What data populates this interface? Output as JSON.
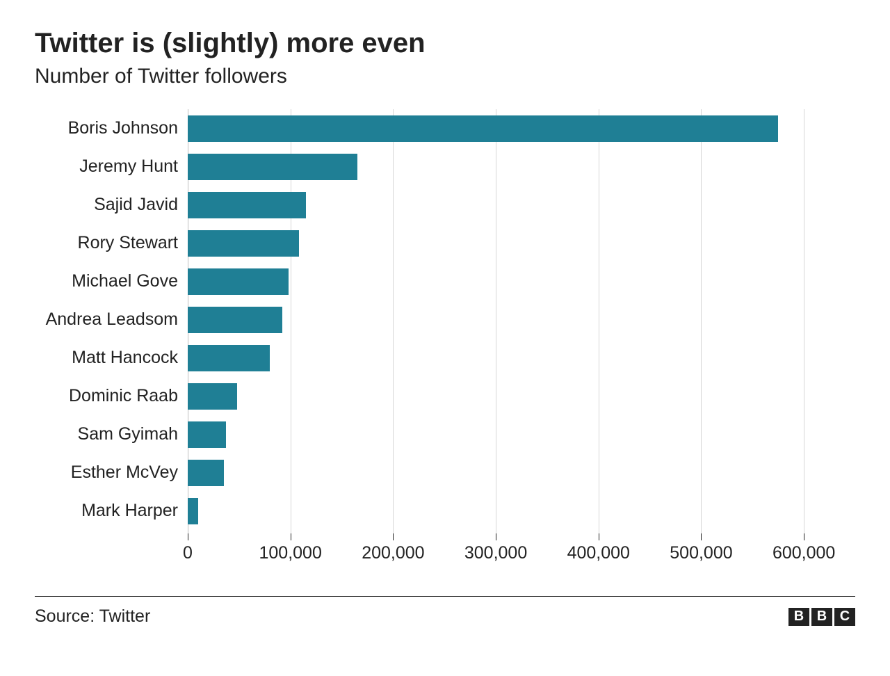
{
  "title": "Twitter is (slightly) more even",
  "subtitle": "Number of Twitter followers",
  "source": "Source: Twitter",
  "logo_letters": [
    "B",
    "B",
    "C"
  ],
  "chart": {
    "type": "bar-horizontal",
    "bar_color": "#1f7f95",
    "grid_color": "#d6d6d6",
    "zero_line_color": "#bfbfbf",
    "label_fontsize": 25,
    "tick_fontsize": 25,
    "xmax": 650000,
    "xticks": [
      {
        "value": 0,
        "label": "0"
      },
      {
        "value": 100000,
        "label": "100,000"
      },
      {
        "value": 200000,
        "label": "200,000"
      },
      {
        "value": 300000,
        "label": "300,000"
      },
      {
        "value": 400000,
        "label": "400,000"
      },
      {
        "value": 500000,
        "label": "500,000"
      },
      {
        "value": 600000,
        "label": "600,000"
      }
    ],
    "rows": [
      {
        "label": "Boris Johnson",
        "value": 575000
      },
      {
        "label": "Jeremy Hunt",
        "value": 165000
      },
      {
        "label": "Sajid Javid",
        "value": 115000
      },
      {
        "label": "Rory Stewart",
        "value": 108000
      },
      {
        "label": "Michael Gove",
        "value": 98000
      },
      {
        "label": "Andrea Leadsom",
        "value": 92000
      },
      {
        "label": "Matt Hancock",
        "value": 80000
      },
      {
        "label": "Dominic Raab",
        "value": 48000
      },
      {
        "label": "Sam Gyimah",
        "value": 37000
      },
      {
        "label": "Esther McVey",
        "value": 35000
      },
      {
        "label": "Mark Harper",
        "value": 10000
      }
    ]
  }
}
